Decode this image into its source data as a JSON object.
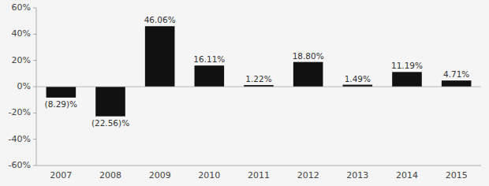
{
  "chart_data": {
    "type": "bar",
    "categories": [
      "2007",
      "2008",
      "2009",
      "2010",
      "2011",
      "2012",
      "2013",
      "2014",
      "2015"
    ],
    "values": [
      -8.29,
      -22.56,
      46.06,
      16.11,
      1.22,
      18.8,
      1.49,
      11.19,
      4.71
    ],
    "value_labels": [
      "(8.29)%",
      "(22.56)%",
      "46.06%",
      "16.11%",
      "1.22%",
      "18.80%",
      "1.49%",
      "11.19%",
      "4.71%"
    ],
    "data_labels": true,
    "color": "#111111",
    "ylim": [
      -60,
      60
    ],
    "yticks": [
      {
        "value": -60,
        "label": "-60%"
      },
      {
        "value": -40,
        "label": "-40%"
      },
      {
        "value": -20,
        "label": "-20%"
      },
      {
        "value": 0,
        "label": "0%"
      },
      {
        "value": 20,
        "label": "20%"
      },
      {
        "value": 40,
        "label": "40%"
      },
      {
        "value": 60,
        "label": "60%"
      }
    ],
    "grid": false
  }
}
